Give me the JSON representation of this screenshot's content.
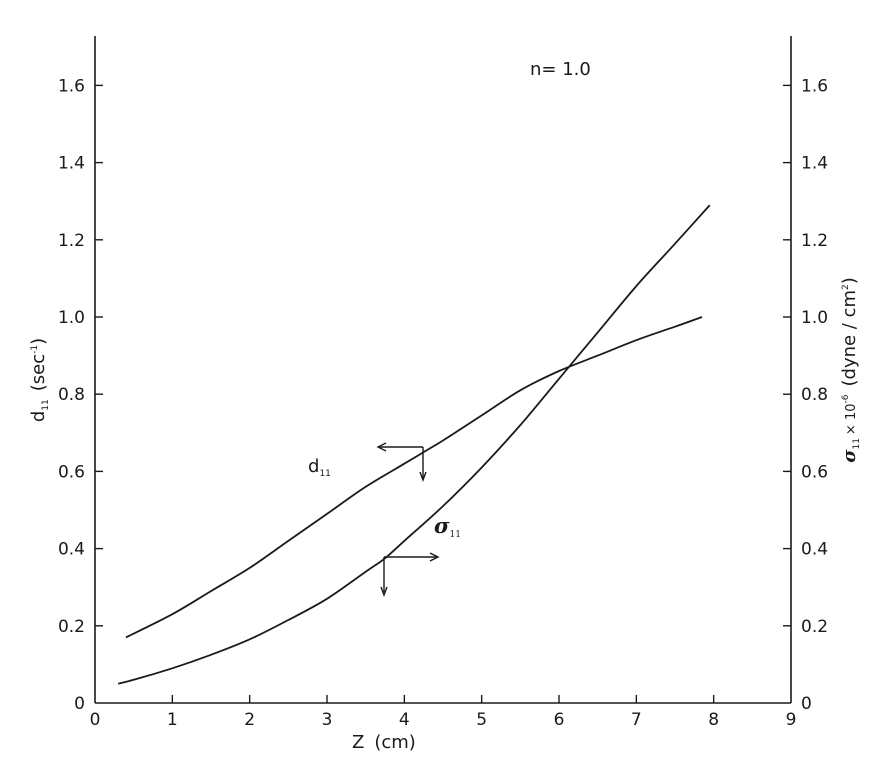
{
  "chart_data": {
    "type": "line",
    "annotation": "n= 1.0",
    "x_axis": {
      "label": "Z",
      "unit": "(cm)",
      "range": [
        0,
        9
      ],
      "ticks": [
        0,
        1,
        2,
        3,
        4,
        5,
        6,
        7,
        8,
        9
      ]
    },
    "y_left": {
      "label": "d",
      "label_sub": "11",
      "unit": "(sec",
      "unit_sup": "-1",
      "unit_close": ")",
      "range": [
        0,
        1.7
      ],
      "ticks": [
        0,
        0.2,
        0.4,
        0.6,
        0.8,
        1.0,
        1.2,
        1.4,
        1.6
      ],
      "tick_labels": [
        "0",
        "0.2",
        "0.4",
        "0.6",
        "0.8",
        "1.0",
        "1.2",
        "1.4",
        "1.6"
      ]
    },
    "y_right": {
      "label": "σ",
      "label_sub": "11",
      "label_mid": "× 10",
      "label_sup": "-6",
      "unit": "(dyne / cm",
      "unit_sup": "2",
      "unit_close": ")",
      "range": [
        0,
        1.7
      ],
      "ticks": [
        0,
        0.2,
        0.4,
        0.6,
        0.8,
        1.0,
        1.2,
        1.4,
        1.6
      ],
      "tick_labels": [
        "0",
        "0.2",
        "0.4",
        "0.6",
        "0.8",
        "1.0",
        "1.2",
        "1.4",
        "1.6"
      ]
    },
    "series": [
      {
        "name": "d",
        "name_sub": "11",
        "axis": "left",
        "x": [
          0.4,
          1,
          1.5,
          2,
          2.5,
          3,
          3.5,
          4,
          4.25,
          4.5,
          5,
          5.5,
          6,
          6.5,
          7,
          7.5,
          7.85
        ],
        "y": [
          0.17,
          0.23,
          0.29,
          0.35,
          0.42,
          0.49,
          0.56,
          0.62,
          0.65,
          0.68,
          0.745,
          0.81,
          0.86,
          0.9,
          0.94,
          0.975,
          1.0
        ]
      },
      {
        "name": "σ",
        "name_sub": "11",
        "axis": "right",
        "x": [
          0.3,
          0.5,
          1,
          1.5,
          2,
          2.5,
          3,
          3.5,
          3.75,
          4,
          4.5,
          5,
          5.5,
          6,
          6.5,
          7,
          7.5,
          7.95
        ],
        "y": [
          0.05,
          0.06,
          0.09,
          0.125,
          0.165,
          0.215,
          0.27,
          0.34,
          0.375,
          0.42,
          0.51,
          0.61,
          0.72,
          0.84,
          0.96,
          1.08,
          1.19,
          1.29
        ]
      }
    ]
  }
}
